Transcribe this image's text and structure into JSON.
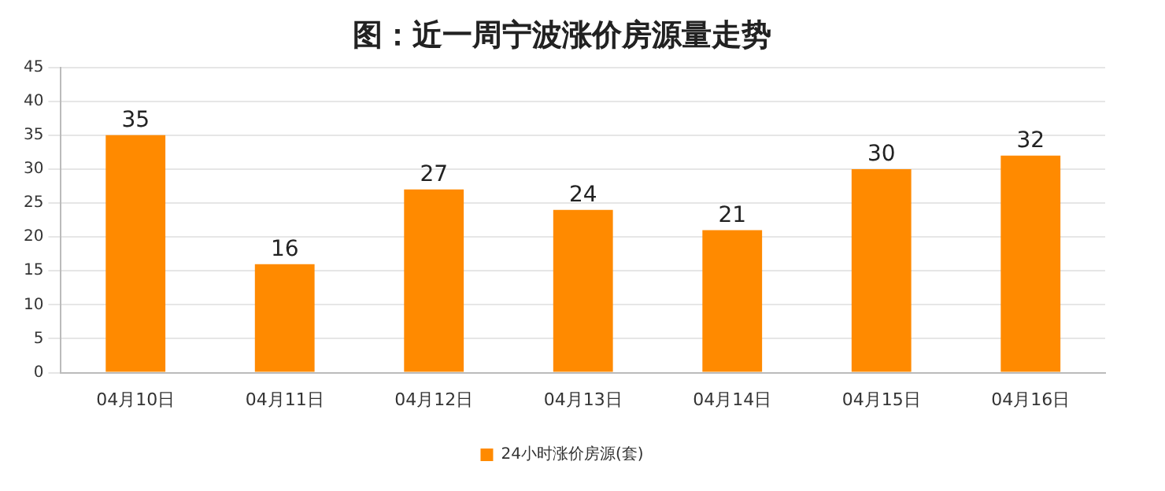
{
  "chart_data": {
    "type": "bar",
    "title": "图：近一周宁波涨价房源量走势",
    "categories": [
      "04月10日",
      "04月11日",
      "04月12日",
      "04月13日",
      "04月14日",
      "04月15日",
      "04月16日"
    ],
    "series": [
      {
        "name": "24小时涨价房源(套)",
        "color": "#ff8a00",
        "values": [
          35,
          16,
          27,
          24,
          21,
          30,
          32
        ]
      }
    ],
    "ylim": [
      0,
      45
    ],
    "yticks": [
      0,
      5,
      10,
      15,
      20,
      25,
      30,
      35,
      40,
      45
    ],
    "grid": "y",
    "legend": "bottom",
    "data_labels": true
  }
}
